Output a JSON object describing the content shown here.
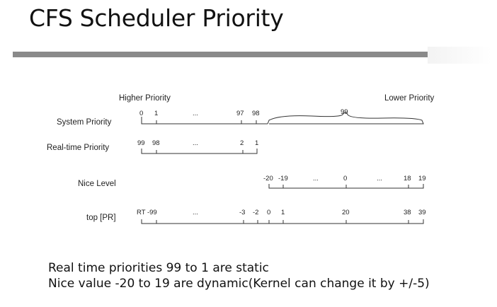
{
  "title": "CFS Scheduler Priority",
  "header": {
    "higher": "Higher Priority",
    "lower": "Lower Priority"
  },
  "rows": {
    "system": {
      "label": "System Priority",
      "ticks": [
        "0",
        "1",
        "...",
        "97",
        "98",
        "99"
      ]
    },
    "realtime": {
      "label": "Real-time Priority",
      "ticks": [
        "99",
        "98",
        "...",
        "2",
        "1"
      ]
    },
    "nice": {
      "label": "Nice Level",
      "ticks": [
        "-20",
        "-19",
        "...",
        "0",
        "...",
        "18",
        "19"
      ]
    },
    "top": {
      "label": "top [PR]",
      "ticks": [
        "RT -99",
        "...",
        "-3",
        "-2",
        "0",
        "1",
        "20",
        "38",
        "39"
      ]
    }
  },
  "notes": [
    "Real time priorities 99 to 1 are static",
    "Nice value -20 to 19 are dynamic(Kernel can change it by +/-5)"
  ]
}
